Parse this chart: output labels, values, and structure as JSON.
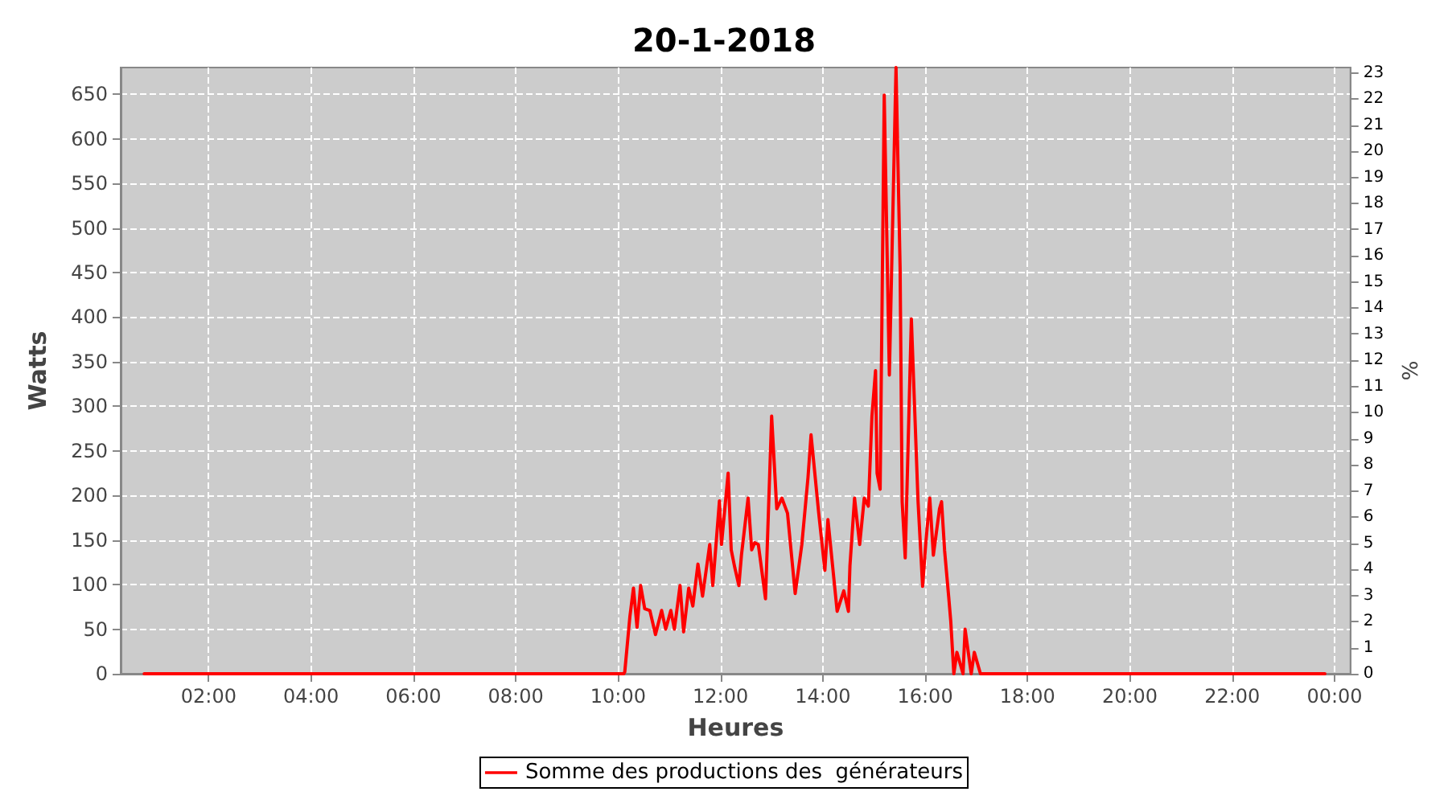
{
  "chart_data": {
    "type": "line",
    "title": "20-1-2018",
    "xlabel": "Heures",
    "ylabel": "Watts",
    "y2label": "%",
    "xlim": [
      0.28,
      24.31
    ],
    "xticks": [
      {
        "value": 2,
        "label": "02:00"
      },
      {
        "value": 4,
        "label": "04:00"
      },
      {
        "value": 6,
        "label": "06:00"
      },
      {
        "value": 8,
        "label": "08:00"
      },
      {
        "value": 10,
        "label": "10:00"
      },
      {
        "value": 12,
        "label": "12:00"
      },
      {
        "value": 14,
        "label": "14:00"
      },
      {
        "value": 16,
        "label": "16:00"
      },
      {
        "value": 18,
        "label": "18:00"
      },
      {
        "value": 20,
        "label": "20:00"
      },
      {
        "value": 22,
        "label": "22:00"
      },
      {
        "value": 24,
        "label": "00:00"
      }
    ],
    "ylim": [
      0,
      680
    ],
    "yticks": [
      0,
      50,
      100,
      150,
      200,
      250,
      300,
      350,
      400,
      450,
      500,
      550,
      600,
      650
    ],
    "y2lim": [
      0,
      23.2
    ],
    "y2ticks": [
      0,
      1,
      2,
      3,
      4,
      5,
      6,
      7,
      8,
      9,
      10,
      11,
      12,
      13,
      14,
      15,
      16,
      17,
      18,
      19,
      20,
      21,
      22,
      23
    ],
    "grid": true,
    "legend": "bottom",
    "marker": "none",
    "line_style": "solid",
    "series": [
      {
        "name": "Somme des productions des  générateurs",
        "color": "#ff0000",
        "x": [
          0.74,
          10.11,
          10.13,
          10.23,
          10.3,
          10.37,
          10.44,
          10.52,
          10.62,
          10.73,
          10.85,
          10.93,
          11.03,
          11.1,
          11.21,
          11.28,
          11.38,
          11.46,
          11.56,
          11.65,
          11.79,
          11.85,
          11.98,
          12.02,
          12.15,
          12.21,
          12.28,
          12.36,
          12.41,
          12.54,
          12.61,
          12.67,
          12.74,
          12.88,
          13.0,
          13.1,
          13.2,
          13.31,
          13.46,
          13.59,
          13.71,
          13.77,
          13.92,
          14.04,
          14.1,
          14.28,
          14.41,
          14.5,
          14.53,
          14.62,
          14.72,
          14.81,
          14.89,
          14.96,
          15.03,
          15.06,
          15.12,
          15.2,
          15.3,
          15.43,
          15.51,
          15.55,
          15.61,
          15.73,
          15.86,
          15.95,
          16.01,
          16.09,
          16.16,
          16.28,
          16.32,
          16.38,
          16.46,
          16.5,
          16.56,
          16.62,
          16.74,
          16.78,
          16.9,
          16.96,
          17.08,
          23.81
        ],
        "values": [
          0,
          0,
          2,
          64,
          96,
          52,
          99,
          73,
          71,
          44,
          71,
          50,
          71,
          50,
          99,
          47,
          96,
          76,
          123,
          87,
          145,
          99,
          194,
          145,
          225,
          139,
          119,
          99,
          133,
          197,
          139,
          147,
          145,
          84,
          289,
          185,
          197,
          180,
          90,
          145,
          220,
          268,
          180,
          116,
          173,
          70,
          93,
          70,
          121,
          197,
          145,
          197,
          188,
          289,
          340,
          225,
          207,
          649,
          335,
          680,
          456,
          193,
          130,
          398,
          194,
          98,
          145,
          197,
          133,
          185,
          193,
          138,
          86,
          59,
          0,
          24,
          0,
          50,
          0,
          24,
          0,
          0
        ]
      }
    ]
  }
}
